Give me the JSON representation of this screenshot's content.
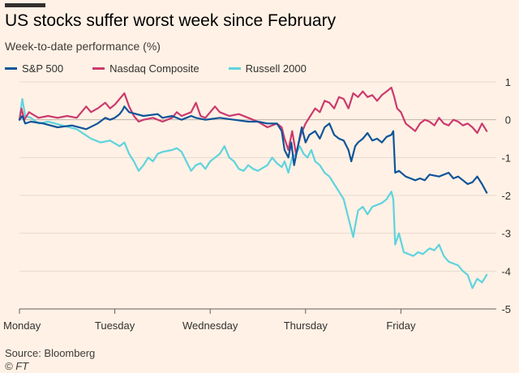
{
  "header": {
    "title": "US stocks suffer worst week since February",
    "subtitle": "Week-to-date performance (%)"
  },
  "footer": {
    "source": "Source: Bloomberg",
    "copyright": "© FT"
  },
  "chart_data": {
    "type": "line",
    "title": "US stocks suffer worst week since February",
    "ylabel": "Week-to-date performance (%)",
    "xlabel": "",
    "x_range": [
      0,
      5
    ],
    "ylim": [
      -5,
      1
    ],
    "y_ticks": [
      1,
      0,
      -1,
      -2,
      -3,
      -4,
      -5
    ],
    "y_tick_labels": [
      "1",
      "0",
      "-1",
      "-2",
      "-3",
      "-4",
      "-5"
    ],
    "x_ticks": [
      {
        "x": 0,
        "label": "Monday"
      },
      {
        "x": 1,
        "label": "Tuesday"
      },
      {
        "x": 2,
        "label": "Wednesday"
      },
      {
        "x": 3,
        "label": "Thursday"
      },
      {
        "x": 4,
        "label": "Friday"
      }
    ],
    "grid": true,
    "legend_position": "top-left",
    "series": [
      {
        "name": "S&P 500",
        "color": "#0f5499",
        "points": [
          [
            0,
            0
          ],
          [
            0.03,
            0.1
          ],
          [
            0.06,
            -0.1
          ],
          [
            0.12,
            -0.05
          ],
          [
            0.25,
            -0.1
          ],
          [
            0.4,
            -0.2
          ],
          [
            0.55,
            -0.15
          ],
          [
            0.7,
            -0.25
          ],
          [
            0.82,
            -0.1
          ],
          [
            0.9,
            0.05
          ],
          [
            0.95,
            0.0
          ],
          [
            1.0,
            0.05
          ],
          [
            1.05,
            0.15
          ],
          [
            1.08,
            0.25
          ],
          [
            1.1,
            0.35
          ],
          [
            1.15,
            0.2
          ],
          [
            1.3,
            0.1
          ],
          [
            1.45,
            0.15
          ],
          [
            1.5,
            0.05
          ],
          [
            1.6,
            0.1
          ],
          [
            1.7,
            0.0
          ],
          [
            1.8,
            0.1
          ],
          [
            1.85,
            0.05
          ],
          [
            1.95,
            0.0
          ],
          [
            2.1,
            0.05
          ],
          [
            2.25,
            0.0
          ],
          [
            2.4,
            -0.05
          ],
          [
            2.5,
            -0.05
          ],
          [
            2.6,
            -0.1
          ],
          [
            2.7,
            -0.1
          ],
          [
            2.75,
            -0.3
          ],
          [
            2.78,
            -0.8
          ],
          [
            2.82,
            -1.0
          ],
          [
            2.85,
            -0.6
          ],
          [
            2.88,
            -1.2
          ],
          [
            2.92,
            -0.7
          ],
          [
            2.96,
            -0.2
          ],
          [
            3.0,
            -0.6
          ],
          [
            3.04,
            -0.4
          ],
          [
            3.1,
            -0.3
          ],
          [
            3.15,
            -0.5
          ],
          [
            3.2,
            -0.2
          ],
          [
            3.25,
            -0.1
          ],
          [
            3.3,
            -0.4
          ],
          [
            3.35,
            -0.5
          ],
          [
            3.4,
            -0.55
          ],
          [
            3.45,
            -0.8
          ],
          [
            3.48,
            -1.1
          ],
          [
            3.52,
            -0.7
          ],
          [
            3.55,
            -0.6
          ],
          [
            3.6,
            -0.5
          ],
          [
            3.65,
            -0.35
          ],
          [
            3.7,
            -0.55
          ],
          [
            3.75,
            -0.5
          ],
          [
            3.8,
            -0.6
          ],
          [
            3.85,
            -0.45
          ],
          [
            3.9,
            -0.4
          ],
          [
            3.92,
            -0.3
          ],
          [
            3.94,
            -1.4
          ],
          [
            3.98,
            -1.35
          ],
          [
            4.05,
            -1.5
          ],
          [
            4.1,
            -1.55
          ],
          [
            4.15,
            -1.6
          ],
          [
            4.2,
            -1.55
          ],
          [
            4.25,
            -1.6
          ],
          [
            4.3,
            -1.45
          ],
          [
            4.4,
            -1.5
          ],
          [
            4.5,
            -1.4
          ],
          [
            4.55,
            -1.55
          ],
          [
            4.6,
            -1.5
          ],
          [
            4.65,
            -1.6
          ],
          [
            4.7,
            -1.7
          ],
          [
            4.75,
            -1.65
          ],
          [
            4.8,
            -1.5
          ],
          [
            4.85,
            -1.7
          ],
          [
            4.9,
            -1.93
          ]
        ]
      },
      {
        "name": "Nasdaq Composite",
        "color": "#cc3a6e",
        "points": [
          [
            0,
            0
          ],
          [
            0.02,
            0.3
          ],
          [
            0.05,
            0.0
          ],
          [
            0.1,
            0.2
          ],
          [
            0.2,
            0.05
          ],
          [
            0.3,
            0.1
          ],
          [
            0.4,
            0.05
          ],
          [
            0.5,
            0.1
          ],
          [
            0.6,
            0.05
          ],
          [
            0.7,
            0.35
          ],
          [
            0.75,
            0.2
          ],
          [
            0.82,
            0.3
          ],
          [
            0.9,
            0.45
          ],
          [
            0.95,
            0.3
          ],
          [
            1.0,
            0.4
          ],
          [
            1.05,
            0.55
          ],
          [
            1.1,
            0.7
          ],
          [
            1.15,
            0.35
          ],
          [
            1.2,
            0.1
          ],
          [
            1.25,
            -0.05
          ],
          [
            1.3,
            0.0
          ],
          [
            1.4,
            0.05
          ],
          [
            1.5,
            -0.05
          ],
          [
            1.6,
            0.05
          ],
          [
            1.65,
            0.2
          ],
          [
            1.7,
            0.1
          ],
          [
            1.8,
            0.2
          ],
          [
            1.85,
            0.45
          ],
          [
            1.9,
            0.1
          ],
          [
            1.95,
            0.05
          ],
          [
            2.0,
            0.2
          ],
          [
            2.05,
            0.35
          ],
          [
            2.1,
            0.2
          ],
          [
            2.2,
            0.1
          ],
          [
            2.3,
            0.15
          ],
          [
            2.4,
            0.05
          ],
          [
            2.5,
            -0.05
          ],
          [
            2.6,
            -0.2
          ],
          [
            2.7,
            -0.1
          ],
          [
            2.75,
            -0.2
          ],
          [
            2.78,
            -0.5
          ],
          [
            2.82,
            -0.8
          ],
          [
            2.86,
            -0.3
          ],
          [
            2.9,
            -0.9
          ],
          [
            2.95,
            -0.4
          ],
          [
            3.0,
            -0.1
          ],
          [
            3.05,
            0.1
          ],
          [
            3.1,
            0.3
          ],
          [
            3.15,
            0.2
          ],
          [
            3.2,
            0.5
          ],
          [
            3.25,
            0.45
          ],
          [
            3.3,
            0.3
          ],
          [
            3.35,
            0.6
          ],
          [
            3.4,
            0.55
          ],
          [
            3.45,
            0.3
          ],
          [
            3.5,
            0.7
          ],
          [
            3.55,
            0.6
          ],
          [
            3.6,
            0.75
          ],
          [
            3.65,
            0.6
          ],
          [
            3.7,
            0.65
          ],
          [
            3.75,
            0.5
          ],
          [
            3.8,
            0.65
          ],
          [
            3.85,
            0.75
          ],
          [
            3.9,
            0.85
          ],
          [
            3.93,
            0.6
          ],
          [
            3.96,
            0.3
          ],
          [
            4.0,
            0.2
          ],
          [
            4.05,
            -0.1
          ],
          [
            4.1,
            -0.2
          ],
          [
            4.15,
            -0.3
          ],
          [
            4.2,
            -0.1
          ],
          [
            4.25,
            0.0
          ],
          [
            4.3,
            -0.05
          ],
          [
            4.35,
            -0.15
          ],
          [
            4.4,
            0.05
          ],
          [
            4.45,
            -0.1
          ],
          [
            4.5,
            -0.15
          ],
          [
            4.55,
            0.0
          ],
          [
            4.6,
            -0.05
          ],
          [
            4.65,
            -0.15
          ],
          [
            4.7,
            -0.1
          ],
          [
            4.75,
            -0.2
          ],
          [
            4.8,
            -0.35
          ],
          [
            4.85,
            -0.1
          ],
          [
            4.9,
            -0.3
          ]
        ]
      },
      {
        "name": "Russell 2000",
        "color": "#5fd3de",
        "points": [
          [
            0,
            0
          ],
          [
            0.03,
            0.55
          ],
          [
            0.06,
            0.1
          ],
          [
            0.12,
            0.05
          ],
          [
            0.2,
            -0.1
          ],
          [
            0.3,
            -0.05
          ],
          [
            0.45,
            -0.15
          ],
          [
            0.6,
            -0.25
          ],
          [
            0.75,
            -0.5
          ],
          [
            0.85,
            -0.6
          ],
          [
            0.95,
            -0.55
          ],
          [
            1.05,
            -0.7
          ],
          [
            1.1,
            -0.6
          ],
          [
            1.15,
            -0.9
          ],
          [
            1.2,
            -1.1
          ],
          [
            1.25,
            -1.35
          ],
          [
            1.3,
            -1.2
          ],
          [
            1.35,
            -1.0
          ],
          [
            1.4,
            -1.1
          ],
          [
            1.45,
            -0.9
          ],
          [
            1.5,
            -0.85
          ],
          [
            1.6,
            -0.8
          ],
          [
            1.65,
            -0.75
          ],
          [
            1.7,
            -0.85
          ],
          [
            1.75,
            -1.1
          ],
          [
            1.8,
            -1.35
          ],
          [
            1.85,
            -1.2
          ],
          [
            1.9,
            -1.15
          ],
          [
            1.95,
            -1.3
          ],
          [
            2.0,
            -1.1
          ],
          [
            2.1,
            -0.9
          ],
          [
            2.15,
            -0.7
          ],
          [
            2.2,
            -1.0
          ],
          [
            2.25,
            -1.1
          ],
          [
            2.3,
            -1.3
          ],
          [
            2.35,
            -1.35
          ],
          [
            2.4,
            -1.2
          ],
          [
            2.45,
            -1.3
          ],
          [
            2.5,
            -1.35
          ],
          [
            2.6,
            -1.2
          ],
          [
            2.65,
            -1.0
          ],
          [
            2.7,
            -1.15
          ],
          [
            2.75,
            -1.25
          ],
          [
            2.78,
            -1.1
          ],
          [
            2.82,
            -1.4
          ],
          [
            2.86,
            -1.0
          ],
          [
            2.9,
            -0.9
          ],
          [
            2.94,
            -0.7
          ],
          [
            2.98,
            -0.9
          ],
          [
            3.02,
            -1.0
          ],
          [
            3.06,
            -0.8
          ],
          [
            3.1,
            -1.1
          ],
          [
            3.15,
            -1.2
          ],
          [
            3.2,
            -1.4
          ],
          [
            3.25,
            -1.5
          ],
          [
            3.3,
            -1.7
          ],
          [
            3.35,
            -1.9
          ],
          [
            3.4,
            -2.1
          ],
          [
            3.45,
            -2.6
          ],
          [
            3.5,
            -3.1
          ],
          [
            3.52,
            -2.8
          ],
          [
            3.55,
            -2.4
          ],
          [
            3.6,
            -2.3
          ],
          [
            3.65,
            -2.5
          ],
          [
            3.7,
            -2.3
          ],
          [
            3.75,
            -2.25
          ],
          [
            3.8,
            -2.2
          ],
          [
            3.85,
            -2.1
          ],
          [
            3.9,
            -1.9
          ],
          [
            3.92,
            -2.1
          ],
          [
            3.94,
            -3.3
          ],
          [
            3.98,
            -3.0
          ],
          [
            4.03,
            -3.5
          ],
          [
            4.08,
            -3.55
          ],
          [
            4.13,
            -3.6
          ],
          [
            4.18,
            -3.5
          ],
          [
            4.23,
            -3.55
          ],
          [
            4.3,
            -3.4
          ],
          [
            4.35,
            -3.45
          ],
          [
            4.4,
            -3.3
          ],
          [
            4.45,
            -3.6
          ],
          [
            4.5,
            -3.75
          ],
          [
            4.55,
            -3.8
          ],
          [
            4.6,
            -3.85
          ],
          [
            4.65,
            -4.0
          ],
          [
            4.7,
            -4.1
          ],
          [
            4.75,
            -4.45
          ],
          [
            4.8,
            -4.2
          ],
          [
            4.85,
            -4.3
          ],
          [
            4.9,
            -4.1
          ]
        ]
      }
    ]
  }
}
